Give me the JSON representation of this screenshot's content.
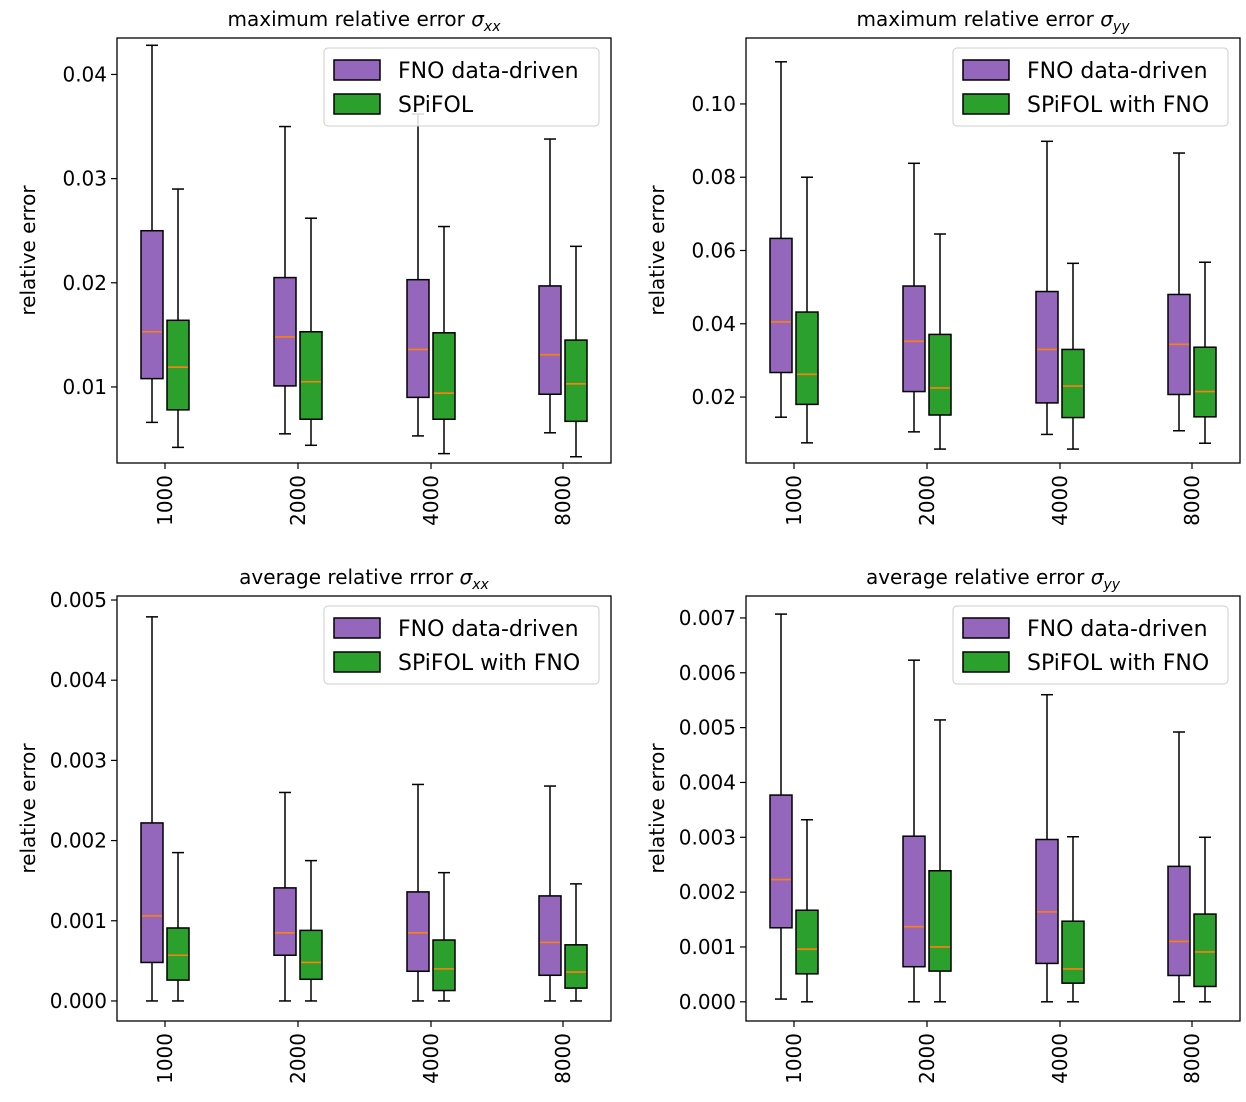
{
  "chart_data": [
    {
      "type": "boxplot",
      "title": "maximum relative error σ_xx",
      "title_text": "maximum relative error ",
      "title_symbol": "σ",
      "title_subscript": "xx",
      "ylabel": "relative error",
      "categories": [
        "1000",
        "2000",
        "4000",
        "8000"
      ],
      "ylim": [
        0.0027,
        0.0435
      ],
      "yticks": [
        0.01,
        0.02,
        0.03,
        0.04
      ],
      "ytick_labels": [
        "0.01",
        "0.02",
        "0.03",
        "0.04"
      ],
      "legend": [
        "FNO data-driven",
        "SPiFOL"
      ],
      "series": [
        {
          "name": "FNO data-driven",
          "color": "#9467bd",
          "boxes": [
            {
              "whislo": 0.0066,
              "q1": 0.0108,
              "med": 0.0153,
              "q3": 0.025,
              "whishi": 0.0428
            },
            {
              "whislo": 0.0055,
              "q1": 0.0101,
              "med": 0.0148,
              "q3": 0.0205,
              "whishi": 0.035
            },
            {
              "whislo": 0.0053,
              "q1": 0.009,
              "med": 0.0136,
              "q3": 0.0203,
              "whishi": 0.0362
            },
            {
              "whislo": 0.0056,
              "q1": 0.0093,
              "med": 0.0131,
              "q3": 0.0197,
              "whishi": 0.0338
            }
          ]
        },
        {
          "name": "SPiFOL",
          "color": "#2ca02c",
          "boxes": [
            {
              "whislo": 0.0042,
              "q1": 0.0078,
              "med": 0.0119,
              "q3": 0.0164,
              "whishi": 0.029
            },
            {
              "whislo": 0.0044,
              "q1": 0.0069,
              "med": 0.0105,
              "q3": 0.0153,
              "whishi": 0.0262
            },
            {
              "whislo": 0.0036,
              "q1": 0.0069,
              "med": 0.0094,
              "q3": 0.0152,
              "whishi": 0.0254
            },
            {
              "whislo": 0.0033,
              "q1": 0.0067,
              "med": 0.0103,
              "q3": 0.0145,
              "whishi": 0.0235
            }
          ]
        }
      ]
    },
    {
      "type": "boxplot",
      "title": "maximum relative error σ_yy",
      "title_text": "maximum relative error ",
      "title_symbol": "σ",
      "title_subscript": "yy",
      "ylabel": "relative error",
      "categories": [
        "1000",
        "2000",
        "4000",
        "8000"
      ],
      "ylim": [
        0.002,
        0.118
      ],
      "yticks": [
        0.02,
        0.04,
        0.06,
        0.08,
        0.1
      ],
      "ytick_labels": [
        "0.02",
        "0.04",
        "0.06",
        "0.08",
        "0.10"
      ],
      "legend": [
        "FNO data-driven",
        "SPiFOL with FNO"
      ],
      "series": [
        {
          "name": "FNO data-driven",
          "color": "#9467bd",
          "boxes": [
            {
              "whislo": 0.0145,
              "q1": 0.0267,
              "med": 0.0405,
              "q3": 0.0633,
              "whishi": 0.1115
            },
            {
              "whislo": 0.0105,
              "q1": 0.0215,
              "med": 0.0352,
              "q3": 0.0503,
              "whishi": 0.0838
            },
            {
              "whislo": 0.0098,
              "q1": 0.0184,
              "med": 0.033,
              "q3": 0.0488,
              "whishi": 0.0898
            },
            {
              "whislo": 0.0108,
              "q1": 0.0207,
              "med": 0.0344,
              "q3": 0.048,
              "whishi": 0.0866
            }
          ]
        },
        {
          "name": "SPiFOL with FNO",
          "color": "#2ca02c",
          "boxes": [
            {
              "whislo": 0.0075,
              "q1": 0.018,
              "med": 0.0262,
              "q3": 0.0432,
              "whishi": 0.08
            },
            {
              "whislo": 0.0058,
              "q1": 0.0151,
              "med": 0.0225,
              "q3": 0.0371,
              "whishi": 0.0645
            },
            {
              "whislo": 0.0058,
              "q1": 0.0144,
              "med": 0.023,
              "q3": 0.033,
              "whishi": 0.0565
            },
            {
              "whislo": 0.0074,
              "q1": 0.0146,
              "med": 0.0215,
              "q3": 0.0336,
              "whishi": 0.0568
            }
          ]
        }
      ]
    },
    {
      "type": "boxplot",
      "title": "average relative rrror σ_xx",
      "title_text": "average relative rrror ",
      "title_symbol": "σ",
      "title_subscript": "xx",
      "ylabel": "relative error",
      "categories": [
        "1000",
        "2000",
        "4000",
        "8000"
      ],
      "ylim": [
        -0.00025,
        0.00505
      ],
      "yticks": [
        0.0,
        0.001,
        0.002,
        0.003,
        0.004,
        0.005
      ],
      "ytick_labels": [
        "0.000",
        "0.001",
        "0.002",
        "0.003",
        "0.004",
        "0.005"
      ],
      "legend": [
        "FNO data-driven",
        "SPiFOL with FNO"
      ],
      "series": [
        {
          "name": "FNO data-driven",
          "color": "#9467bd",
          "boxes": [
            {
              "whislo": 0.0,
              "q1": 0.00048,
              "med": 0.00106,
              "q3": 0.00222,
              "whishi": 0.00479
            },
            {
              "whislo": 0.0,
              "q1": 0.00057,
              "med": 0.00085,
              "q3": 0.00141,
              "whishi": 0.0026
            },
            {
              "whislo": 0.0,
              "q1": 0.00037,
              "med": 0.00085,
              "q3": 0.00136,
              "whishi": 0.0027
            },
            {
              "whislo": 0.0,
              "q1": 0.00032,
              "med": 0.00073,
              "q3": 0.00131,
              "whishi": 0.00268
            }
          ]
        },
        {
          "name": "SPiFOL with FNO",
          "color": "#2ca02c",
          "boxes": [
            {
              "whislo": 0.0,
              "q1": 0.00026,
              "med": 0.00057,
              "q3": 0.00091,
              "whishi": 0.00185
            },
            {
              "whislo": 0.0,
              "q1": 0.00027,
              "med": 0.00048,
              "q3": 0.00088,
              "whishi": 0.00175
            },
            {
              "whislo": 0.0,
              "q1": 0.00013,
              "med": 0.0004,
              "q3": 0.00076,
              "whishi": 0.0016
            },
            {
              "whislo": 0.0,
              "q1": 0.00016,
              "med": 0.00036,
              "q3": 0.0007,
              "whishi": 0.00146
            }
          ]
        }
      ]
    },
    {
      "type": "boxplot",
      "title": "average relative error σ_yy",
      "title_text": "average relative error ",
      "title_symbol": "σ",
      "title_subscript": "yy",
      "ylabel": "relative error",
      "categories": [
        "1000",
        "2000",
        "4000",
        "8000"
      ],
      "ylim": [
        -0.00035,
        0.0074
      ],
      "yticks": [
        0.0,
        0.001,
        0.002,
        0.003,
        0.004,
        0.005,
        0.006,
        0.007
      ],
      "ytick_labels": [
        "0.000",
        "0.001",
        "0.002",
        "0.003",
        "0.004",
        "0.005",
        "0.006",
        "0.007"
      ],
      "legend": [
        "FNO data-driven",
        "SPiFOL with FNO"
      ],
      "series": [
        {
          "name": "FNO data-driven",
          "color": "#9467bd",
          "boxes": [
            {
              "whislo": 5e-05,
              "q1": 0.00135,
              "med": 0.00223,
              "q3": 0.00377,
              "whishi": 0.00707
            },
            {
              "whislo": 0.0,
              "q1": 0.00064,
              "med": 0.00137,
              "q3": 0.00302,
              "whishi": 0.00623
            },
            {
              "whislo": 0.0,
              "q1": 0.0007,
              "med": 0.00164,
              "q3": 0.00296,
              "whishi": 0.0056
            },
            {
              "whislo": 0.0,
              "q1": 0.00048,
              "med": 0.0011,
              "q3": 0.00247,
              "whishi": 0.00492
            }
          ]
        },
        {
          "name": "SPiFOL with FNO",
          "color": "#2ca02c",
          "boxes": [
            {
              "whislo": 0.0,
              "q1": 0.00051,
              "med": 0.00096,
              "q3": 0.00167,
              "whishi": 0.00332
            },
            {
              "whislo": 0.0,
              "q1": 0.00056,
              "med": 0.001,
              "q3": 0.00239,
              "whishi": 0.00514
            },
            {
              "whislo": 0.0,
              "q1": 0.00034,
              "med": 0.0006,
              "q3": 0.00147,
              "whishi": 0.00301
            },
            {
              "whislo": 0.0,
              "q1": 0.00028,
              "med": 0.00091,
              "q3": 0.0016,
              "whishi": 0.003
            }
          ]
        }
      ]
    }
  ],
  "colors": {
    "median": "#ff7f0e",
    "axis": "#000000"
  }
}
